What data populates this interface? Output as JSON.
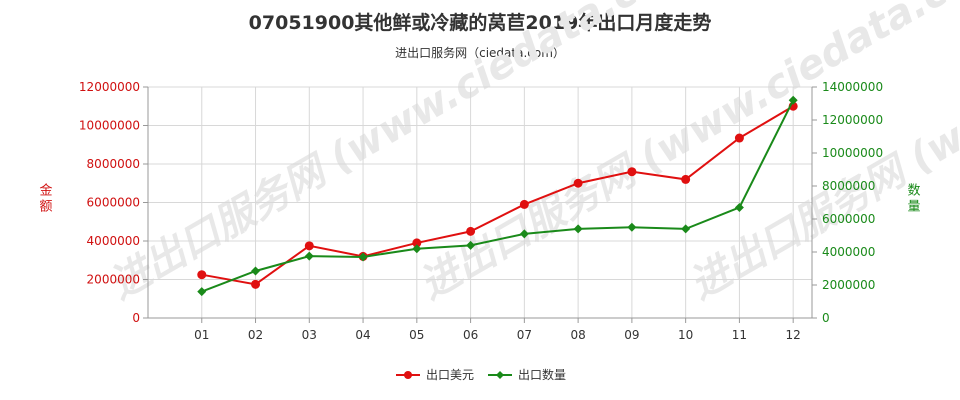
{
  "chart_data": {
    "type": "line",
    "title": "07051900其他鲜或冷藏的莴苣2019年出口月度走势",
    "subtitle": "进出口服务网（ciedata.com）",
    "watermark": "进出口服务网 (www.ciedata.com)",
    "categories": [
      "01",
      "02",
      "03",
      "04",
      "05",
      "06",
      "07",
      "08",
      "09",
      "10",
      "11",
      "12"
    ],
    "y_left": {
      "label": "金额",
      "ylim": [
        0,
        12000000
      ],
      "ticks": [
        "0",
        "2000000",
        "4000000",
        "6000000",
        "8000000",
        "10000000",
        "12000000"
      ],
      "color": "#d01010"
    },
    "y_right": {
      "label": "数量",
      "ylim": [
        0,
        14000000
      ],
      "ticks": [
        "0",
        "2000000",
        "4000000",
        "6000000",
        "8000000",
        "10000000",
        "12000000",
        "14000000"
      ],
      "color": "#1a8a1a"
    },
    "series": [
      {
        "name": "出口美元",
        "axis": "left",
        "color": "#e01010",
        "values": [
          2250000,
          1750000,
          3750000,
          3200000,
          3900000,
          4500000,
          5900000,
          7000000,
          7600000,
          7200000,
          9350000,
          11000000
        ]
      },
      {
        "name": "出口数量",
        "axis": "right",
        "color": "#1a8a1a",
        "values": [
          1600000,
          2850000,
          3750000,
          3700000,
          4200000,
          4400000,
          5100000,
          5400000,
          5500000,
          5400000,
          6700000,
          13200000
        ]
      }
    ],
    "grid": true,
    "legend": "bottom-center"
  }
}
